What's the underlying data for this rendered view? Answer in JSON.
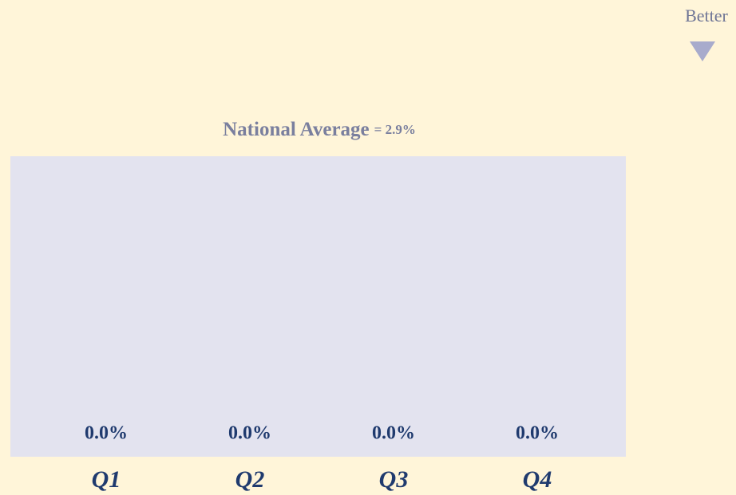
{
  "chart_data": {
    "type": "bar",
    "annotation": "Better",
    "reference": {
      "label": "National Average",
      "value": 2.9,
      "value_label": "= 2.9%"
    },
    "categories": [
      "Q1",
      "Q2",
      "Q3",
      "Q4"
    ],
    "values": [
      0.0,
      0.0,
      0.0,
      0.0
    ],
    "value_labels": [
      "0.0%",
      "0.0%",
      "0.0%",
      "0.0%"
    ],
    "color": "#1f3a6e",
    "reference_color": "#e3e3ef",
    "ylim": [
      0,
      2.9
    ]
  }
}
